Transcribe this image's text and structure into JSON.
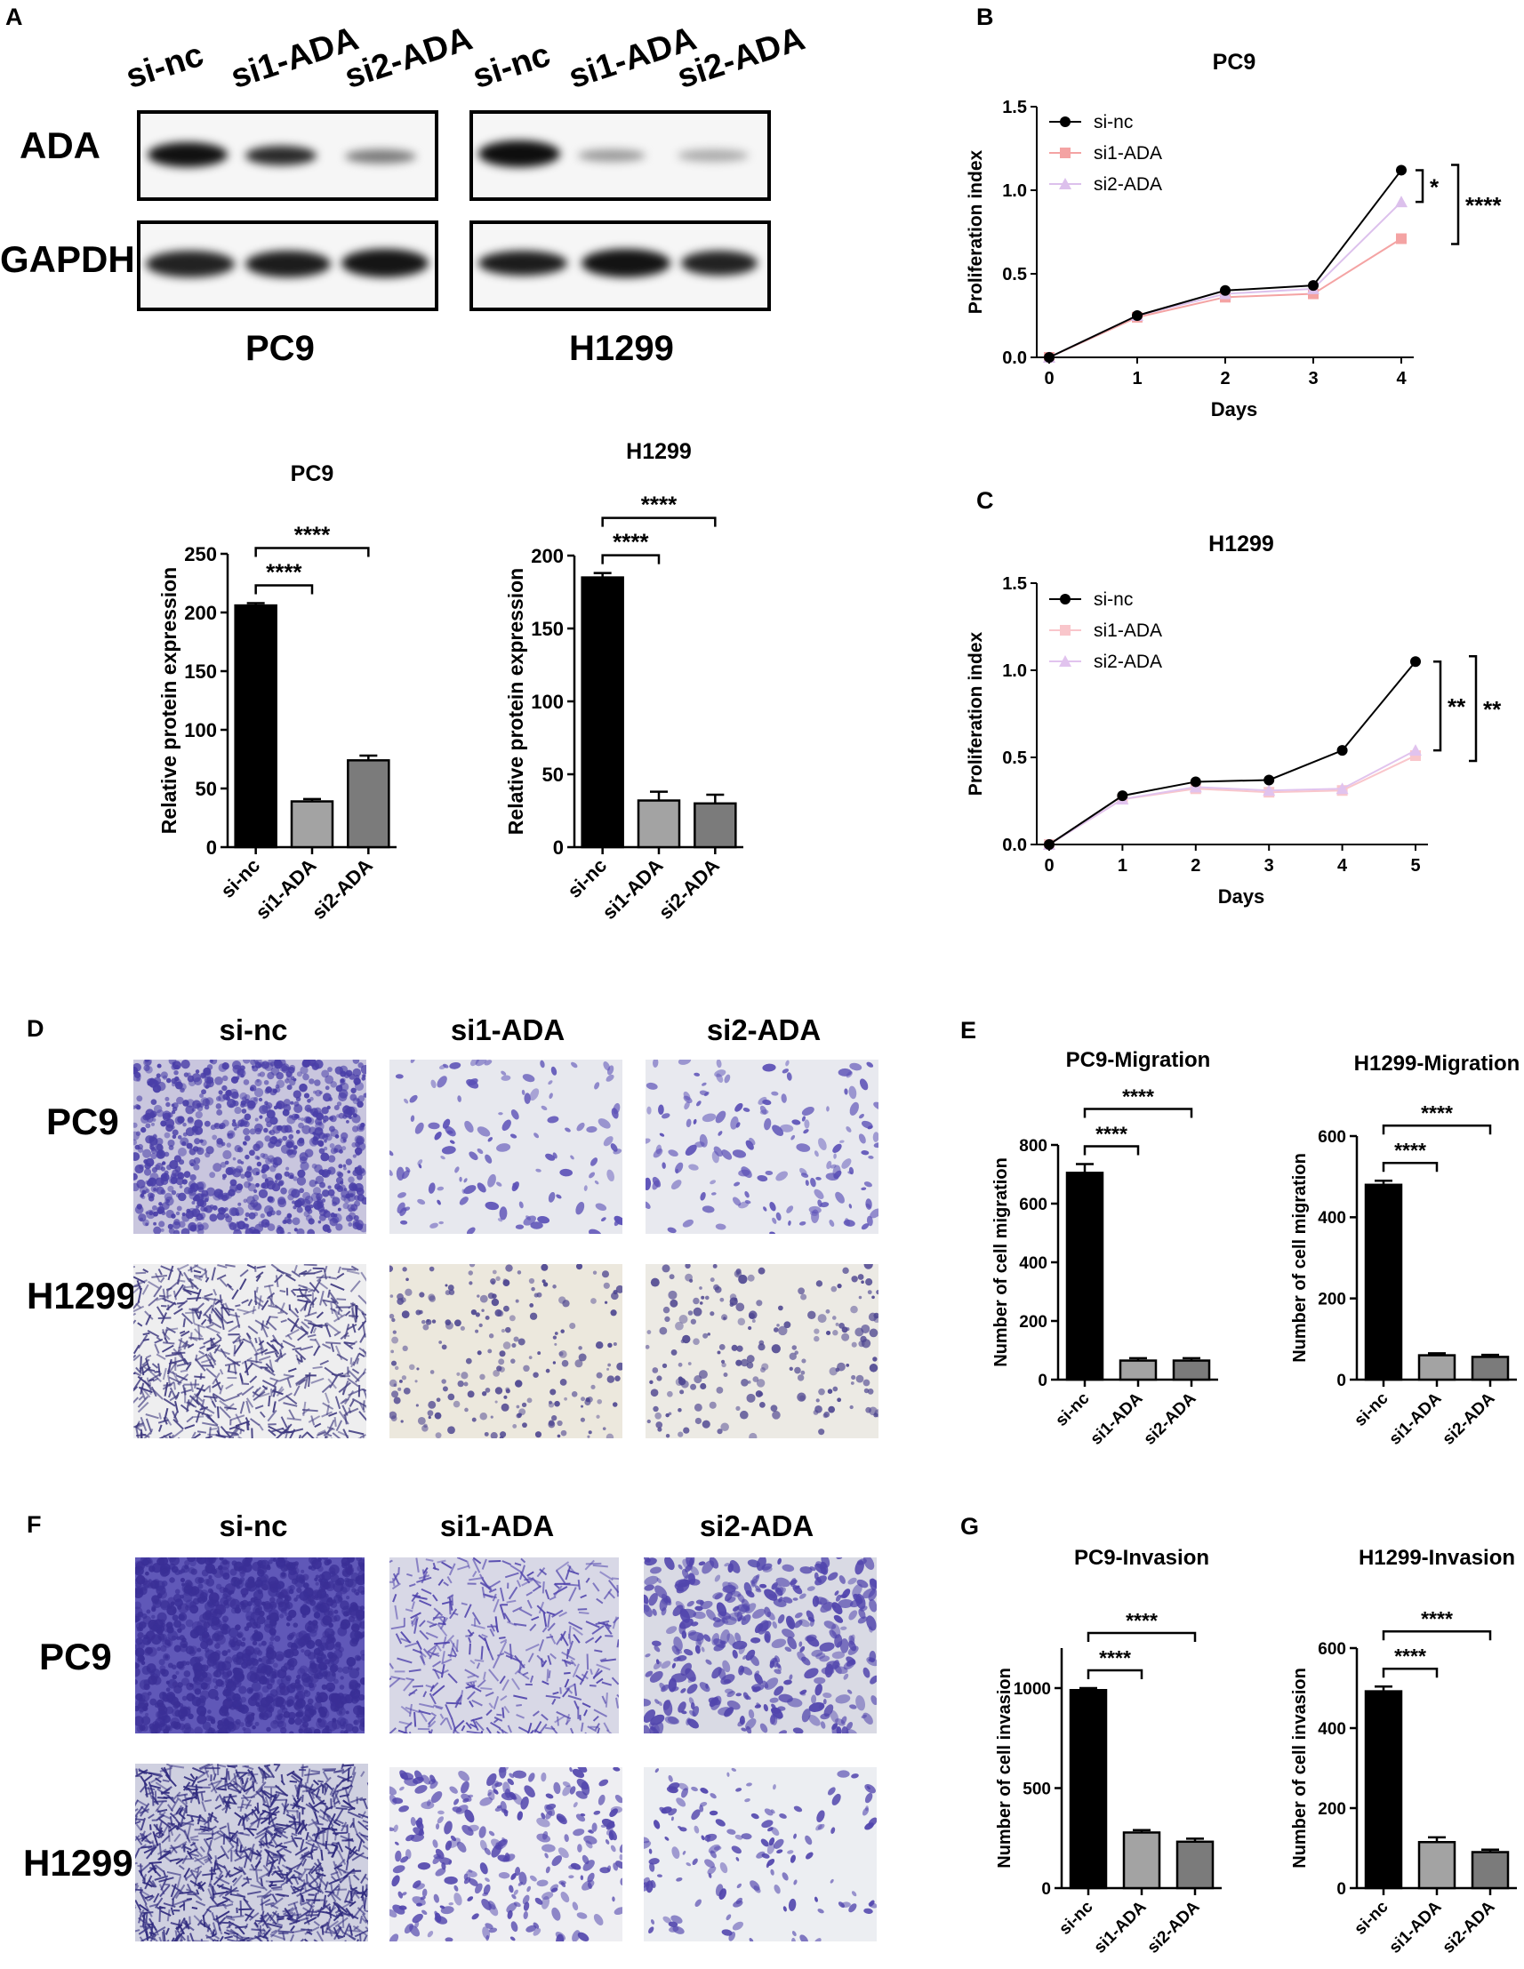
{
  "panels": {
    "A": {
      "letter": "A",
      "lanes": [
        "si-nc",
        "si1-ADA",
        "si2-ADA"
      ],
      "rows": [
        "ADA",
        "GAPDH"
      ],
      "cell_lines": [
        "PC9",
        "H1299"
      ]
    },
    "B": {
      "letter": "B"
    },
    "C": {
      "letter": "C"
    },
    "D": {
      "letter": "D",
      "columns": [
        "si-nc",
        "si1-ADA",
        "si2-ADA"
      ],
      "rows": [
        "PC9",
        "H1299"
      ]
    },
    "E": {
      "letter": "E"
    },
    "F": {
      "letter": "F",
      "columns": [
        "si-nc",
        "si1-ADA",
        "si2-ADA"
      ],
      "rows": [
        "PC9",
        "H1299"
      ]
    },
    "G": {
      "letter": "G"
    }
  },
  "colors": {
    "black": "#000000",
    "gray1": "#a3a3a3",
    "gray2": "#7b7b7b",
    "si1_line": "#f4a3a3",
    "si2_line": "#dcc0ec",
    "si1_c": "#f9c6cb",
    "si2_c": "#e1c3ee",
    "stain": "#4b3fa5"
  },
  "chart_data": [
    {
      "id": "A-pc9-bar",
      "type": "bar",
      "title": "PC9",
      "categories": [
        "si-nc",
        "si1-ADA",
        "si2-ADA"
      ],
      "values": [
        206,
        39,
        74
      ],
      "errors": [
        2,
        2,
        4
      ],
      "ylabel": "Relative protein expression",
      "ylim": [
        0,
        250
      ],
      "yticks": [
        0,
        50,
        100,
        150,
        200,
        250
      ],
      "sig": [
        {
          "from": 0,
          "to": 1,
          "label": "****"
        },
        {
          "from": 0,
          "to": 2,
          "label": "****"
        }
      ]
    },
    {
      "id": "A-h1299-bar",
      "type": "bar",
      "title": "H1299",
      "categories": [
        "si-nc",
        "si1-ADA",
        "si2-ADA"
      ],
      "values": [
        185,
        32,
        30
      ],
      "errors": [
        3,
        6,
        6
      ],
      "ylabel": "Relative protein expression",
      "ylim": [
        0,
        200
      ],
      "yticks": [
        0,
        50,
        100,
        150,
        200
      ],
      "sig": [
        {
          "from": 0,
          "to": 1,
          "label": "****"
        },
        {
          "from": 0,
          "to": 2,
          "label": "****"
        }
      ]
    },
    {
      "id": "B-line",
      "type": "line",
      "title": "PC9",
      "x": [
        0,
        1,
        2,
        3,
        4
      ],
      "xlabel": "Days",
      "ylabel": "Proliferation index",
      "ylim": [
        0,
        1.5
      ],
      "yticks": [
        "0.0",
        "0.5",
        "1.0",
        "1.5"
      ],
      "series": [
        {
          "name": "si-nc",
          "values": [
            0.0,
            0.25,
            0.4,
            0.43,
            1.12
          ]
        },
        {
          "name": "si1-ADA",
          "values": [
            0.0,
            0.24,
            0.36,
            0.38,
            0.71
          ]
        },
        {
          "name": "si2-ADA",
          "values": [
            0.0,
            0.25,
            0.38,
            0.41,
            0.93
          ]
        }
      ],
      "sig": [
        "*",
        "****"
      ]
    },
    {
      "id": "C-line",
      "type": "line",
      "title": "H1299",
      "x": [
        0,
        1,
        2,
        3,
        4,
        5
      ],
      "xlabel": "Days",
      "ylabel": "Proliferation index",
      "ylim": [
        0,
        1.5
      ],
      "yticks": [
        "0.0",
        "0.5",
        "1.0",
        "1.5"
      ],
      "series": [
        {
          "name": "si-nc",
          "values": [
            0.0,
            0.28,
            0.36,
            0.37,
            0.54,
            1.05
          ]
        },
        {
          "name": "si1-ADA",
          "values": [
            0.0,
            0.26,
            0.32,
            0.3,
            0.31,
            0.51
          ]
        },
        {
          "name": "si2-ADA",
          "values": [
            0.0,
            0.26,
            0.33,
            0.31,
            0.32,
            0.54
          ]
        }
      ],
      "sig": [
        "**",
        "**"
      ]
    },
    {
      "id": "E-pc9-bar",
      "type": "bar",
      "title": "PC9-Migration",
      "categories": [
        "si-nc",
        "si1-ADA",
        "si2-ADA"
      ],
      "values": [
        705,
        65,
        65
      ],
      "errors": [
        30,
        8,
        8
      ],
      "ylabel": "Number of cell migration",
      "ylim": [
        0,
        800
      ],
      "yticks": [
        0,
        200,
        400,
        600,
        800
      ],
      "sig": [
        {
          "from": 0,
          "to": 1,
          "label": "****"
        },
        {
          "from": 0,
          "to": 2,
          "label": "****"
        }
      ]
    },
    {
      "id": "E-h1299-bar",
      "type": "bar",
      "title": "H1299-Migration",
      "categories": [
        "si-nc",
        "si1-ADA",
        "si2-ADA"
      ],
      "values": [
        480,
        60,
        56
      ],
      "errors": [
        10,
        5,
        5
      ],
      "ylabel": "Number of cell migration",
      "ylim": [
        0,
        600
      ],
      "yticks": [
        0,
        200,
        400,
        600
      ],
      "sig": [
        {
          "from": 0,
          "to": 1,
          "label": "****"
        },
        {
          "from": 0,
          "to": 2,
          "label": "****"
        }
      ]
    },
    {
      "id": "G-pc9-bar",
      "type": "bar",
      "title": "PC9-Invasion",
      "categories": [
        "si-nc",
        "si1-ADA",
        "si2-ADA"
      ],
      "values": [
        990,
        278,
        232
      ],
      "errors": [
        10,
        12,
        15
      ],
      "ylabel": "Number of cell invasion",
      "ylim": [
        0,
        1200
      ],
      "yticks": [
        0,
        500,
        1000
      ],
      "sig": [
        {
          "from": 0,
          "to": 1,
          "label": "****"
        },
        {
          "from": 0,
          "to": 2,
          "label": "****"
        }
      ]
    },
    {
      "id": "G-h1299-bar",
      "type": "bar",
      "title": "H1299-Invasion",
      "categories": [
        "si-nc",
        "si1-ADA",
        "si2-ADA"
      ],
      "values": [
        492,
        115,
        90
      ],
      "errors": [
        12,
        12,
        6
      ],
      "ylabel": "Number of cell invasion",
      "ylim": [
        0,
        600
      ],
      "yticks": [
        0,
        200,
        400,
        600
      ],
      "sig": [
        {
          "from": 0,
          "to": 1,
          "label": "****"
        },
        {
          "from": 0,
          "to": 2,
          "label": "****"
        }
      ]
    }
  ]
}
